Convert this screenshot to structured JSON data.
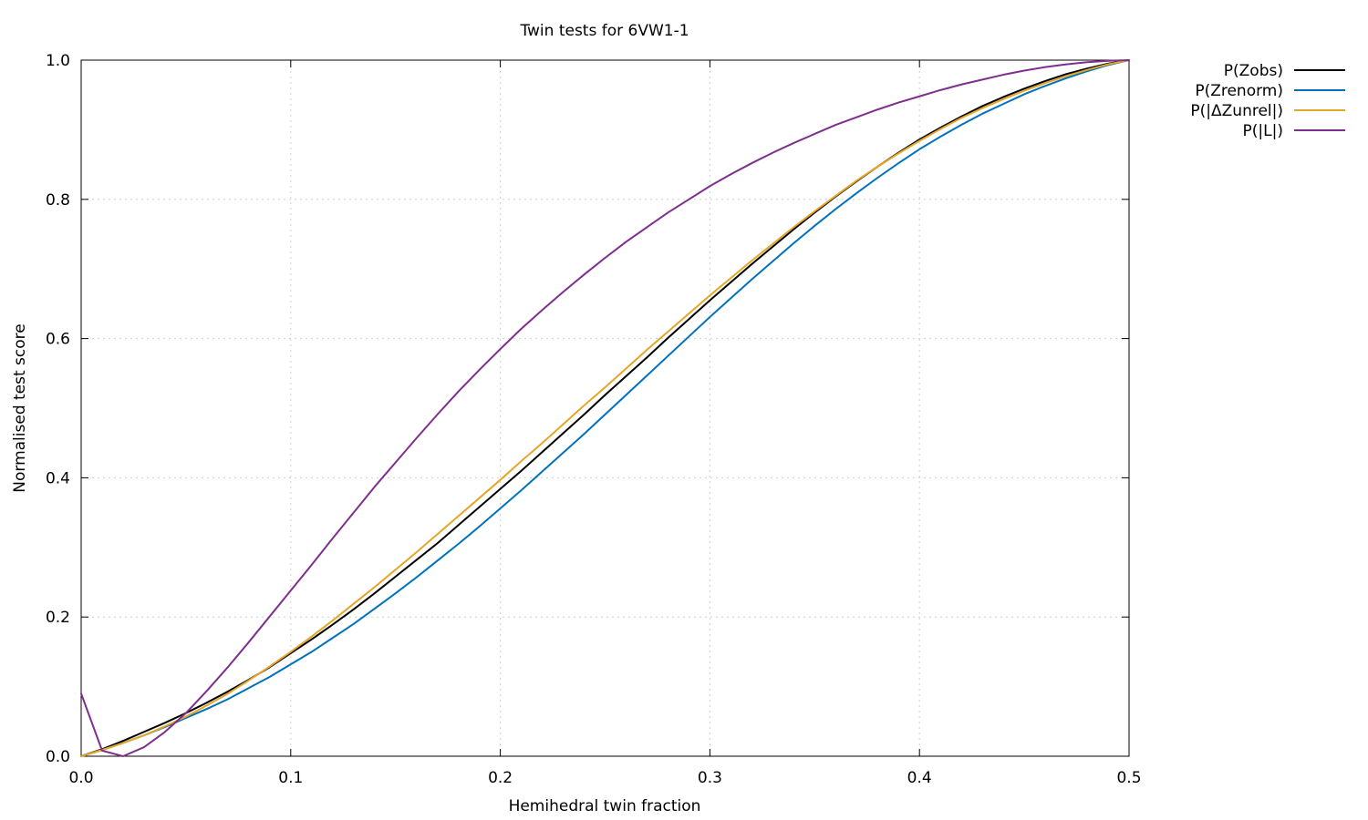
{
  "chart_data": {
    "type": "line",
    "title": "Twin tests for 6VW1-1",
    "xlabel": "Hemihedral twin fraction",
    "ylabel": "Normalised test score",
    "xlim": [
      0,
      0.5
    ],
    "ylim": [
      0,
      1
    ],
    "xticks": [
      "0.0",
      "0.1",
      "0.2",
      "0.3",
      "0.4",
      "0.5"
    ],
    "yticks": [
      "0.0",
      "0.2",
      "0.4",
      "0.6",
      "0.8",
      "1.0"
    ],
    "grid": true,
    "legend_position": "outside-top-right",
    "x": [
      0,
      0.01,
      0.02,
      0.03,
      0.04,
      0.05,
      0.06,
      0.07,
      0.08,
      0.09,
      0.1,
      0.11,
      0.12,
      0.13,
      0.14,
      0.15,
      0.16,
      0.17,
      0.18,
      0.19,
      0.2,
      0.21,
      0.22,
      0.23,
      0.24,
      0.25,
      0.26,
      0.27,
      0.28,
      0.29,
      0.3,
      0.31,
      0.32,
      0.33,
      0.34,
      0.35,
      0.36,
      0.37,
      0.38,
      0.39,
      0.4,
      0.41,
      0.42,
      0.43,
      0.44,
      0.45,
      0.46,
      0.47,
      0.48,
      0.49,
      0.5
    ],
    "series": [
      {
        "name": "P(Zobs)",
        "color": "#000000",
        "values": [
          0.0,
          0.01,
          0.022,
          0.035,
          0.048,
          0.062,
          0.077,
          0.093,
          0.11,
          0.128,
          0.148,
          0.168,
          0.189,
          0.211,
          0.234,
          0.258,
          0.282,
          0.306,
          0.332,
          0.358,
          0.384,
          0.41,
          0.437,
          0.464,
          0.491,
          0.519,
          0.546,
          0.573,
          0.601,
          0.628,
          0.655,
          0.681,
          0.707,
          0.732,
          0.757,
          0.781,
          0.804,
          0.826,
          0.847,
          0.867,
          0.886,
          0.903,
          0.919,
          0.934,
          0.947,
          0.959,
          0.97,
          0.98,
          0.988,
          0.995,
          1.0
        ]
      },
      {
        "name": "P(Zrenorm)",
        "color": "#0072bd",
        "values": [
          0.0,
          0.009,
          0.019,
          0.03,
          0.042,
          0.055,
          0.068,
          0.082,
          0.098,
          0.114,
          0.132,
          0.15,
          0.17,
          0.19,
          0.212,
          0.234,
          0.257,
          0.281,
          0.305,
          0.33,
          0.356,
          0.382,
          0.409,
          0.436,
          0.463,
          0.491,
          0.519,
          0.547,
          0.575,
          0.603,
          0.631,
          0.658,
          0.685,
          0.711,
          0.737,
          0.762,
          0.786,
          0.809,
          0.831,
          0.852,
          0.872,
          0.89,
          0.907,
          0.923,
          0.937,
          0.951,
          0.963,
          0.974,
          0.984,
          0.993,
          1.0
        ]
      },
      {
        "name": "P(|ΔZunrel|)",
        "color": "#e6a627",
        "values": [
          0.0,
          0.009,
          0.019,
          0.03,
          0.043,
          0.057,
          0.073,
          0.09,
          0.109,
          0.129,
          0.15,
          0.172,
          0.195,
          0.219,
          0.243,
          0.268,
          0.293,
          0.319,
          0.345,
          0.371,
          0.397,
          0.424,
          0.45,
          0.477,
          0.504,
          0.53,
          0.557,
          0.584,
          0.61,
          0.636,
          0.662,
          0.687,
          0.712,
          0.736,
          0.76,
          0.783,
          0.805,
          0.827,
          0.847,
          0.866,
          0.884,
          0.901,
          0.917,
          0.931,
          0.944,
          0.956,
          0.967,
          0.977,
          0.986,
          0.994,
          1.0
        ]
      },
      {
        "name": "P(|L|)",
        "color": "#7e2f8e",
        "values": [
          0.09,
          0.008,
          0.0,
          0.013,
          0.035,
          0.062,
          0.094,
          0.128,
          0.164,
          0.201,
          0.238,
          0.275,
          0.313,
          0.35,
          0.387,
          0.422,
          0.457,
          0.491,
          0.524,
          0.555,
          0.585,
          0.614,
          0.641,
          0.667,
          0.692,
          0.716,
          0.739,
          0.76,
          0.781,
          0.8,
          0.819,
          0.836,
          0.852,
          0.867,
          0.881,
          0.894,
          0.907,
          0.918,
          0.929,
          0.939,
          0.948,
          0.957,
          0.965,
          0.972,
          0.979,
          0.985,
          0.99,
          0.994,
          0.997,
          0.999,
          1.0
        ]
      }
    ]
  }
}
